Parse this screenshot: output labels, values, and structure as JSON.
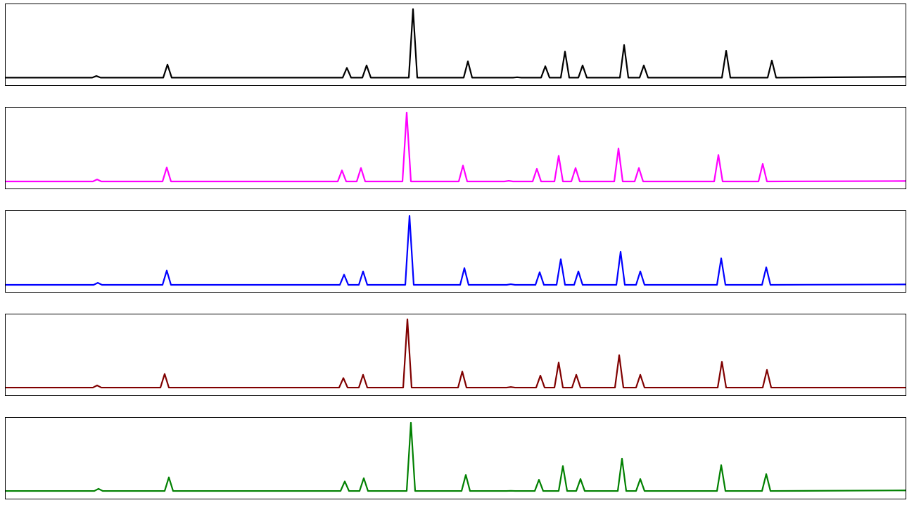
{
  "chart_data": [
    {
      "type": "line",
      "color": "#000000",
      "xlim": [
        8,
        1287
      ],
      "ylim": [
        0,
        100
      ],
      "x": [
        8,
        131,
        137,
        143,
        232,
        238,
        244,
        487,
        493,
        499,
        515,
        521,
        527,
        581,
        587,
        593,
        659,
        665,
        671,
        729,
        735,
        741,
        769,
        775,
        781,
        797,
        803,
        809,
        822,
        828,
        834,
        881,
        887,
        893,
        909,
        915,
        921,
        1026,
        1032,
        1038,
        1091,
        1097,
        1103,
        1287
      ],
      "values": [
        10,
        10,
        12,
        10,
        10,
        26,
        10,
        10,
        22,
        10,
        10,
        25,
        10,
        10,
        94,
        10,
        10,
        30,
        10,
        10,
        10.5,
        10,
        10,
        24,
        10,
        10,
        42,
        10,
        10,
        25,
        10,
        10,
        50,
        10,
        10,
        25,
        10,
        10,
        43,
        10,
        10,
        31,
        10,
        11
      ]
    },
    {
      "type": "line",
      "color": "#ff00ff",
      "xlim": [
        8,
        1287
      ],
      "ylim": [
        0,
        100
      ],
      "x": [
        8,
        132,
        138,
        144,
        231,
        237,
        243,
        480,
        486,
        492,
        507,
        513,
        519,
        572,
        578,
        584,
        652,
        658,
        664,
        717,
        723,
        729,
        757,
        763,
        769,
        788,
        794,
        800,
        812,
        818,
        824,
        873,
        879,
        885,
        902,
        908,
        914,
        1015,
        1021,
        1027,
        1078,
        1084,
        1090,
        1287
      ],
      "values": [
        9.5,
        9.5,
        12,
        9.5,
        9.5,
        26.7,
        9.5,
        9.5,
        23,
        9.5,
        9.5,
        26,
        9.5,
        9.5,
        94,
        9.5,
        9.5,
        29,
        9.5,
        9.5,
        10.3,
        9.5,
        9.5,
        25,
        9.5,
        9.5,
        41,
        9.5,
        9.5,
        26,
        9.5,
        9.5,
        50,
        9.5,
        9.5,
        26,
        9.5,
        9.5,
        42,
        9.5,
        9.5,
        31,
        9.5,
        10
      ]
    },
    {
      "type": "line",
      "color": "#0000ff",
      "xlim": [
        8,
        1287
      ],
      "ylim": [
        0,
        100
      ],
      "x": [
        8,
        133,
        139,
        145,
        231,
        237,
        243,
        483,
        489,
        495,
        510,
        516,
        522,
        576,
        582,
        588,
        654,
        660,
        666,
        720,
        726,
        732,
        761,
        767,
        773,
        791,
        797,
        803,
        816,
        822,
        828,
        876,
        882,
        888,
        904,
        910,
        916,
        1019,
        1025,
        1031,
        1083,
        1089,
        1095,
        1287
      ],
      "values": [
        9.5,
        9.5,
        12,
        9.5,
        9.5,
        27,
        9.5,
        9.5,
        22,
        9.5,
        9.5,
        26,
        9.5,
        9.5,
        94,
        9.5,
        9.5,
        30,
        9.5,
        9.5,
        10.3,
        9.5,
        9.5,
        25,
        9.5,
        9.5,
        41,
        9.5,
        9.5,
        26,
        9.5,
        9.5,
        50,
        9.5,
        9.5,
        26,
        9.5,
        9.5,
        42,
        9.5,
        9.5,
        31,
        9.5,
        10
      ]
    },
    {
      "type": "line",
      "color": "#800000",
      "xlim": [
        8,
        1287
      ],
      "ylim": [
        0,
        100
      ],
      "x": [
        8,
        132,
        138,
        144,
        228,
        234,
        240,
        482,
        488,
        494,
        510,
        516,
        522,
        573,
        579,
        585,
        651,
        657,
        663,
        720,
        726,
        732,
        762,
        768,
        774,
        788,
        794,
        800,
        813,
        819,
        825,
        874,
        880,
        886,
        904,
        910,
        916,
        1020,
        1026,
        1032,
        1084,
        1090,
        1096,
        1287
      ],
      "values": [
        10.3,
        10.3,
        13,
        10.3,
        10.3,
        27,
        10.3,
        10.3,
        22,
        10.3,
        10.3,
        26,
        10.3,
        10.3,
        94,
        10.3,
        10.3,
        30,
        10.3,
        10.3,
        11,
        10.3,
        10.3,
        25,
        10.3,
        10.3,
        41,
        10.3,
        10.3,
        26,
        10.3,
        10.3,
        50,
        10.3,
        10.3,
        26,
        10.3,
        10.3,
        42,
        10.3,
        10.3,
        32,
        10.3,
        10.3
      ]
    },
    {
      "type": "line",
      "color": "#008000",
      "xlim": [
        8,
        1287
      ],
      "ylim": [
        0,
        100
      ],
      "x": [
        8,
        134,
        140,
        146,
        234,
        240,
        246,
        484,
        490,
        496,
        511,
        517,
        523,
        578,
        584,
        590,
        656,
        662,
        668,
        720,
        726,
        732,
        760,
        766,
        772,
        794,
        800,
        806,
        819,
        825,
        831,
        878,
        884,
        890,
        904,
        910,
        916,
        1019,
        1025,
        1031,
        1083,
        1089,
        1095,
        1287
      ],
      "values": [
        10.3,
        10.3,
        13,
        10.3,
        10.3,
        27,
        10.3,
        10.3,
        22,
        10.3,
        10.3,
        26,
        10.3,
        10.3,
        94,
        10.3,
        10.3,
        30,
        10.3,
        10.3,
        10.5,
        10.3,
        10.3,
        24,
        10.3,
        10.3,
        41,
        10.3,
        10.3,
        25,
        10.3,
        10.3,
        50,
        10.3,
        10.3,
        25,
        10.3,
        10.3,
        42,
        10.3,
        10.3,
        31,
        10.3,
        11
      ]
    }
  ]
}
